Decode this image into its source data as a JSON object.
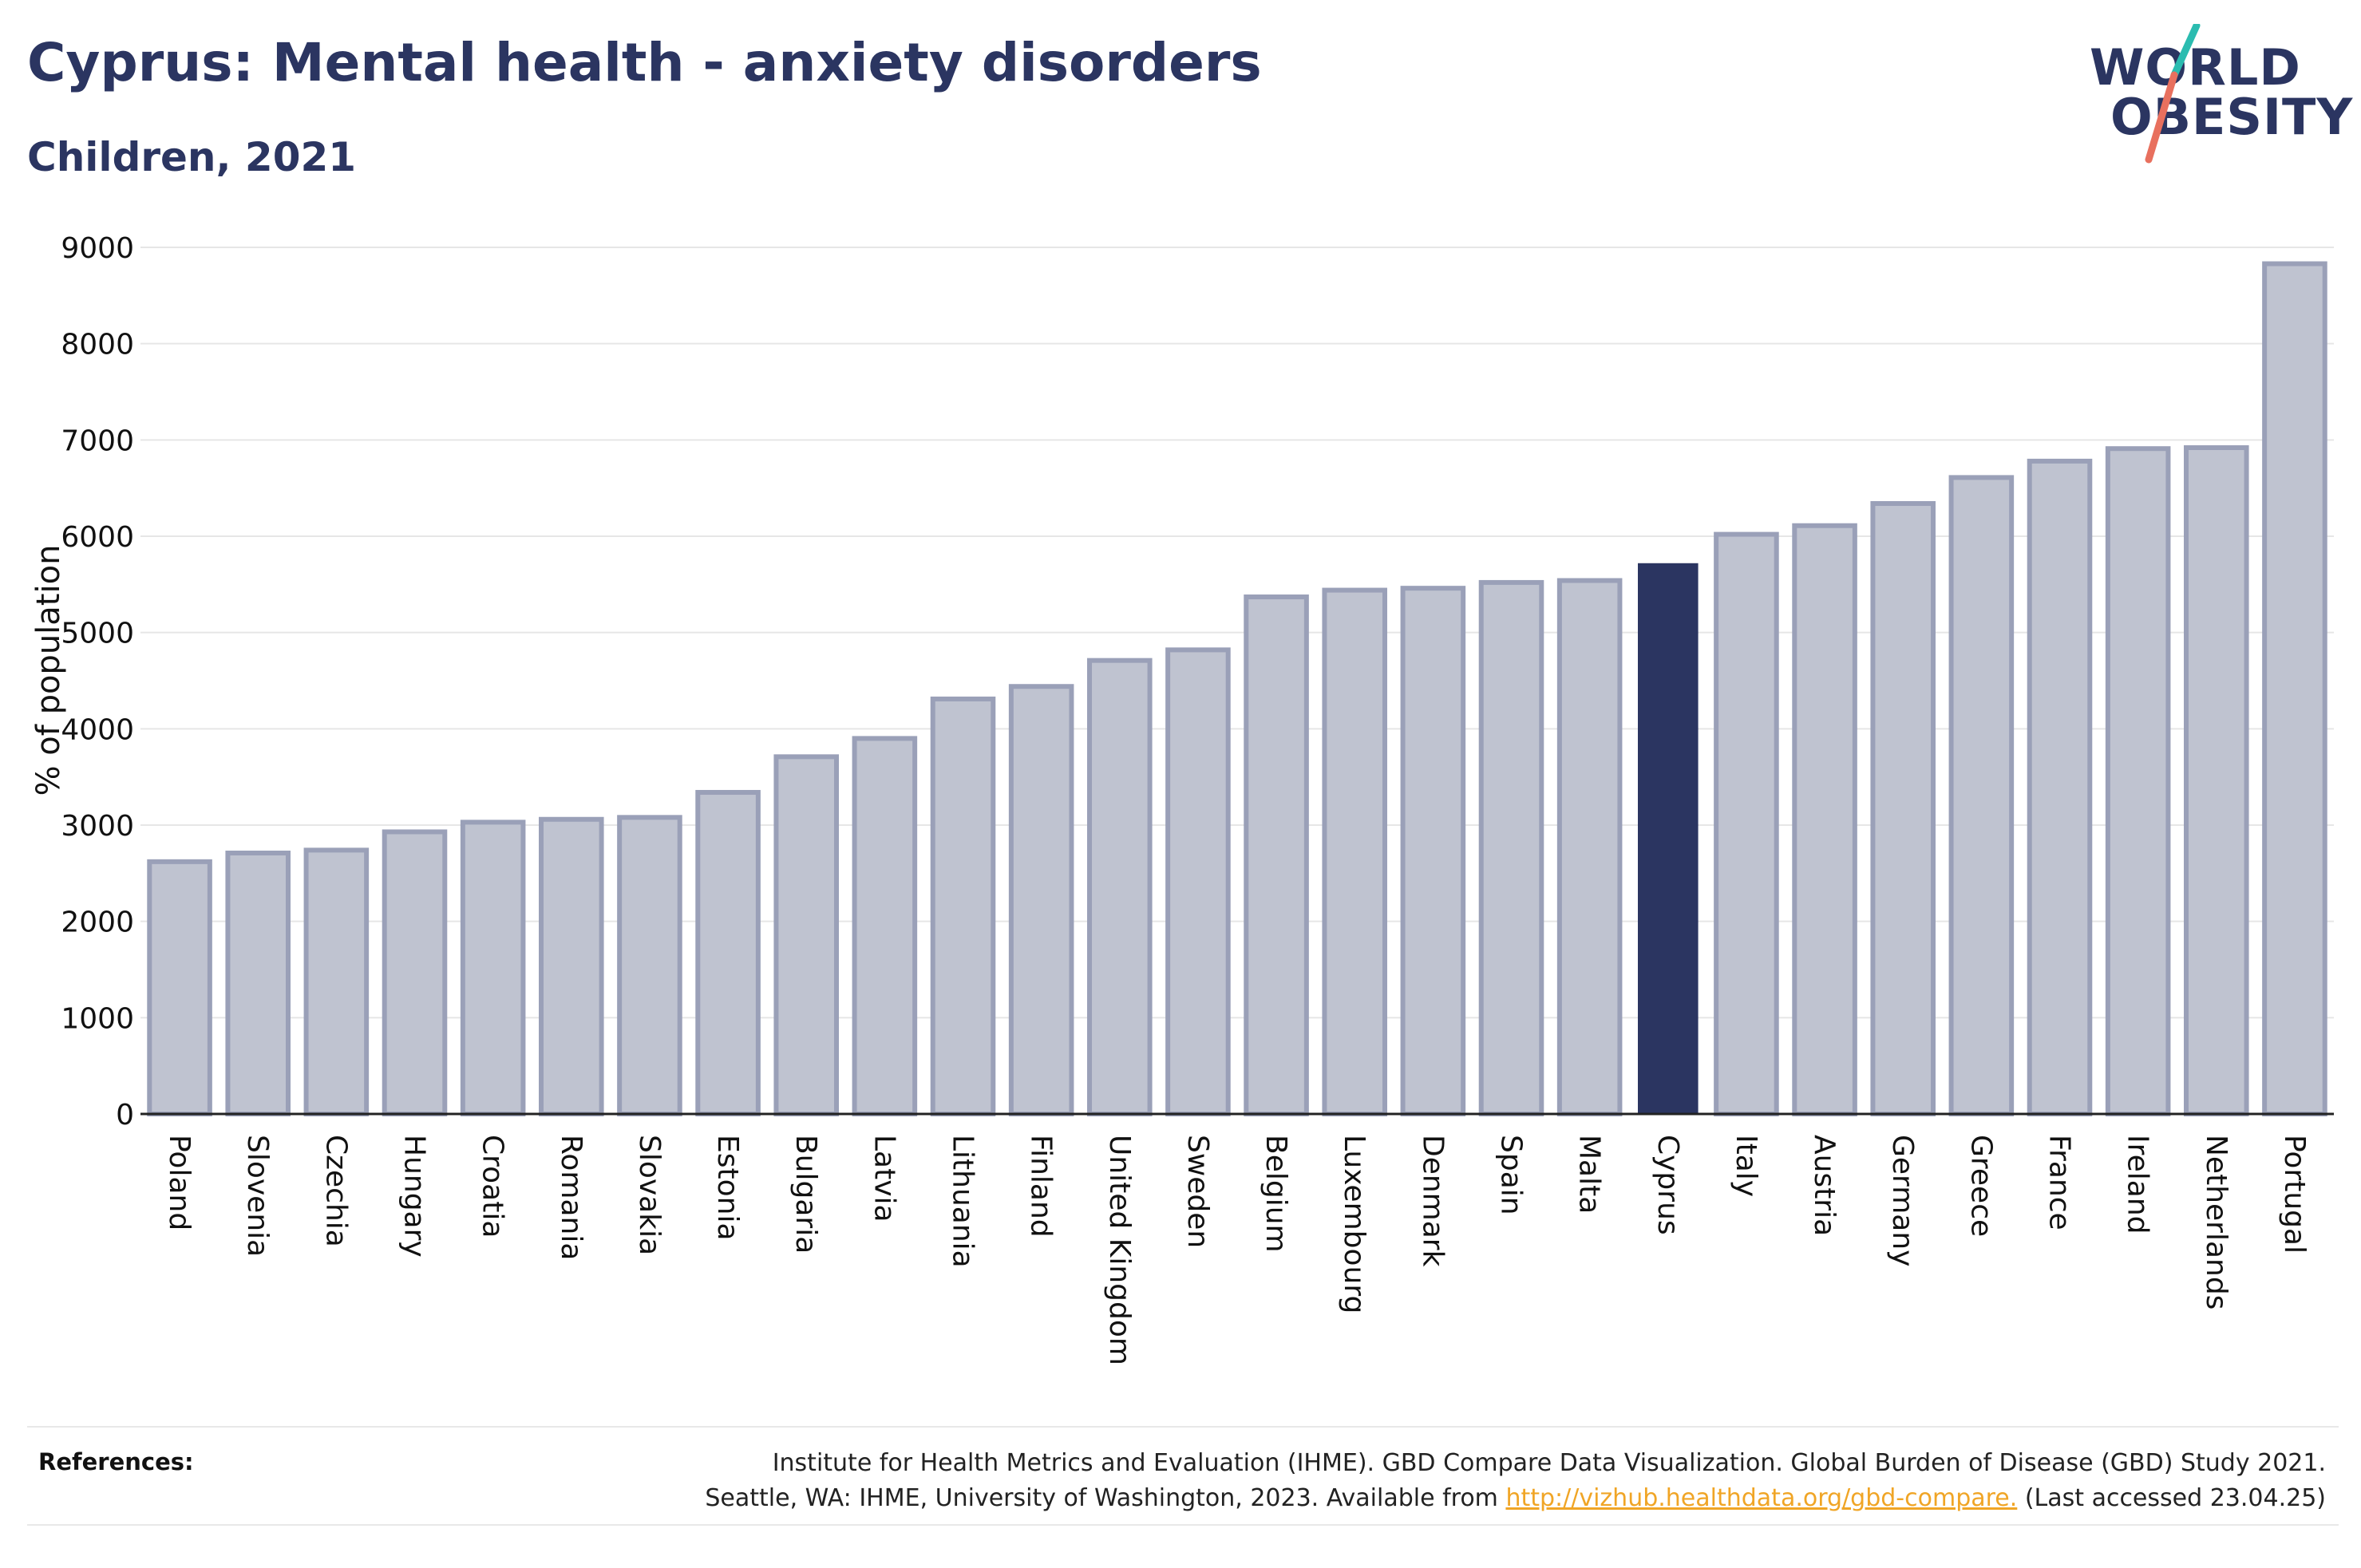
{
  "header": {
    "title": "Cyprus: Mental health - anxiety disorders",
    "subtitle": "Children, 2021"
  },
  "logo": {
    "line1": "WORLD",
    "line2": "OBESITY",
    "colors": {
      "text": "#2b3561",
      "slash_top": "#2bbcb0",
      "slash_bottom": "#e8705e"
    }
  },
  "chart_data": {
    "type": "bar",
    "ylabel": "% of population",
    "ylim": [
      0,
      9000
    ],
    "yticks": [
      0,
      1000,
      2000,
      3000,
      4000,
      5000,
      6000,
      7000,
      8000,
      9000
    ],
    "grid": true,
    "highlight": "Cyprus",
    "colors": {
      "bar": "#bfc3d0",
      "bar_border": "#9aa0b8",
      "highlight": "#2b3561",
      "gridline": "#e6e6e6"
    },
    "categories": [
      "Poland",
      "Slovenia",
      "Czechia",
      "Hungary",
      "Croatia",
      "Romania",
      "Slovakia",
      "Estonia",
      "Bulgaria",
      "Latvia",
      "Lithuania",
      "Finland",
      "United Kingdom",
      "Sweden",
      "Belgium",
      "Luxembourg",
      "Denmark",
      "Spain",
      "Malta",
      "Cyprus",
      "Italy",
      "Austria",
      "Germany",
      "Greece",
      "France",
      "Ireland",
      "Netherlands",
      "Portugal"
    ],
    "values": [
      2620,
      2710,
      2740,
      2930,
      3030,
      3060,
      3080,
      3340,
      3710,
      3900,
      4310,
      4440,
      4710,
      4820,
      5370,
      5440,
      5460,
      5520,
      5540,
      5720,
      6020,
      6110,
      6340,
      6610,
      6780,
      6910,
      6920,
      8830
    ]
  },
  "references": {
    "label": "References:",
    "line1": "Institute for Health Metrics and Evaluation (IHME). GBD Compare Data Visualization. Global Burden of Disease (GBD) Study 2021.",
    "line2_before": "Seattle, WA: IHME, University of Washington, 2023. Available from ",
    "link_text": "http://vizhub.healthdata.org/gbd-compare.",
    "line2_after": " (Last accessed 23.04.25)"
  }
}
